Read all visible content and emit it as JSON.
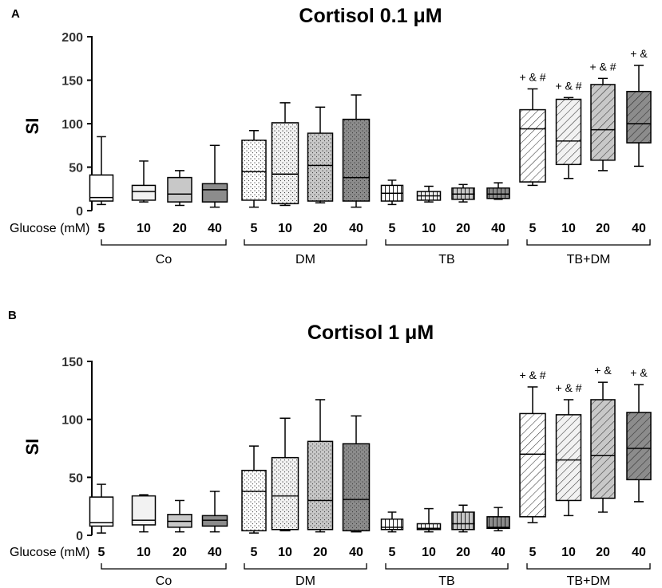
{
  "chart_data": [
    {
      "panel": "A",
      "type": "boxplot",
      "title": "Cortisol 0.1 μM",
      "xlabel": "Glucose (mM)",
      "ylabel": "SI",
      "ylim": [
        0,
        200
      ],
      "yticks": [
        0,
        50,
        100,
        150,
        200
      ],
      "groups": [
        {
          "name": "Co",
          "categories": [
            "5",
            "10",
            "20",
            "40"
          ],
          "boxes": [
            {
              "glucose": "5",
              "min": 7,
              "q1": 11,
              "median": 15,
              "q3": 41,
              "max": 85,
              "fill": "#ffffff",
              "pattern": "none"
            },
            {
              "glucose": "10",
              "min": 10,
              "q1": 12,
              "median": 22,
              "q3": 29,
              "max": 57,
              "fill": "#f2f2f2",
              "pattern": "none"
            },
            {
              "glucose": "20",
              "min": 6,
              "q1": 10,
              "median": 19,
              "q3": 38,
              "max": 46,
              "fill": "#c8c8c8",
              "pattern": "none"
            },
            {
              "glucose": "40",
              "min": 4,
              "q1": 10,
              "median": 24,
              "q3": 31,
              "max": 75,
              "fill": "#8c8c8c",
              "pattern": "none"
            }
          ]
        },
        {
          "name": "DM",
          "categories": [
            "5",
            "10",
            "20",
            "40"
          ],
          "boxes": [
            {
              "glucose": "5",
              "min": 4,
              "q1": 12,
              "median": 45,
              "q3": 81,
              "max": 92,
              "fill": "#ffffff",
              "pattern": "dots"
            },
            {
              "glucose": "10",
              "min": 6,
              "q1": 8,
              "median": 42,
              "q3": 101,
              "max": 124,
              "fill": "#f2f2f2",
              "pattern": "dots"
            },
            {
              "glucose": "20",
              "min": 9,
              "q1": 11,
              "median": 52,
              "q3": 89,
              "max": 119,
              "fill": "#c8c8c8",
              "pattern": "dots"
            },
            {
              "glucose": "40",
              "min": 4,
              "q1": 11,
              "median": 38,
              "q3": 105,
              "max": 133,
              "fill": "#8c8c8c",
              "pattern": "dots"
            }
          ]
        },
        {
          "name": "TB",
          "categories": [
            "5",
            "10",
            "20",
            "40"
          ],
          "boxes": [
            {
              "glucose": "5",
              "min": 7,
              "q1": 11,
              "median": 20,
              "q3": 29,
              "max": 35,
              "fill": "#ffffff",
              "pattern": "vlines"
            },
            {
              "glucose": "10",
              "min": 10,
              "q1": 12,
              "median": 17,
              "q3": 22,
              "max": 28,
              "fill": "#f2f2f2",
              "pattern": "vlines"
            },
            {
              "glucose": "20",
              "min": 10,
              "q1": 13,
              "median": 19,
              "q3": 26,
              "max": 30,
              "fill": "#c8c8c8",
              "pattern": "vlines"
            },
            {
              "glucose": "40",
              "min": 13,
              "q1": 14,
              "median": 19,
              "q3": 26,
              "max": 32,
              "fill": "#8c8c8c",
              "pattern": "vlines"
            }
          ]
        },
        {
          "name": "TB+DM",
          "categories": [
            "5",
            "10",
            "20",
            "40"
          ],
          "boxes": [
            {
              "glucose": "5",
              "min": 29,
              "q1": 33,
              "median": 94,
              "q3": 116,
              "max": 140,
              "fill": "#ffffff",
              "pattern": "diag",
              "sig": "+ & #"
            },
            {
              "glucose": "10",
              "min": 37,
              "q1": 53,
              "median": 80,
              "q3": 128,
              "max": 130,
              "fill": "#f2f2f2",
              "pattern": "diag",
              "sig": "+ & #"
            },
            {
              "glucose": "20",
              "min": 46,
              "q1": 58,
              "median": 93,
              "q3": 145,
              "max": 152,
              "fill": "#c8c8c8",
              "pattern": "diag",
              "sig": "+ & #"
            },
            {
              "glucose": "40",
              "min": 51,
              "q1": 78,
              "median": 100,
              "q3": 137,
              "max": 167,
              "fill": "#8c8c8c",
              "pattern": "diag",
              "sig": "+ &"
            }
          ]
        }
      ]
    },
    {
      "panel": "B",
      "type": "boxplot",
      "title": "Cortisol 1 μM",
      "xlabel": "Glucose (mM)",
      "ylabel": "SI",
      "ylim": [
        0,
        150
      ],
      "yticks": [
        0,
        50,
        100,
        150
      ],
      "groups": [
        {
          "name": "Co",
          "categories": [
            "5",
            "10",
            "20",
            "40"
          ],
          "boxes": [
            {
              "glucose": "5",
              "min": 2,
              "q1": 8,
              "median": 11,
              "q3": 33,
              "max": 44,
              "fill": "#ffffff",
              "pattern": "none"
            },
            {
              "glucose": "10",
              "min": 3,
              "q1": 9,
              "median": 13,
              "q3": 34,
              "max": 35,
              "fill": "#f2f2f2",
              "pattern": "none"
            },
            {
              "glucose": "20",
              "min": 3,
              "q1": 7,
              "median": 12,
              "q3": 18,
              "max": 30,
              "fill": "#c8c8c8",
              "pattern": "none"
            },
            {
              "glucose": "40",
              "min": 3,
              "q1": 8,
              "median": 13,
              "q3": 17,
              "max": 38,
              "fill": "#8c8c8c",
              "pattern": "none"
            }
          ]
        },
        {
          "name": "DM",
          "categories": [
            "5",
            "10",
            "20",
            "40"
          ],
          "boxes": [
            {
              "glucose": "5",
              "min": 2,
              "q1": 4,
              "median": 38,
              "q3": 56,
              "max": 77,
              "fill": "#ffffff",
              "pattern": "dots"
            },
            {
              "glucose": "10",
              "min": 4,
              "q1": 5,
              "median": 34,
              "q3": 67,
              "max": 101,
              "fill": "#f2f2f2",
              "pattern": "dots"
            },
            {
              "glucose": "20",
              "min": 3,
              "q1": 5,
              "median": 30,
              "q3": 81,
              "max": 117,
              "fill": "#c8c8c8",
              "pattern": "dots"
            },
            {
              "glucose": "40",
              "min": 3,
              "q1": 4,
              "median": 31,
              "q3": 79,
              "max": 103,
              "fill": "#8c8c8c",
              "pattern": "dots"
            }
          ]
        },
        {
          "name": "TB",
          "categories": [
            "5",
            "10",
            "20",
            "40"
          ],
          "boxes": [
            {
              "glucose": "5",
              "min": 3,
              "q1": 5,
              "median": 7,
              "q3": 14,
              "max": 20,
              "fill": "#ffffff",
              "pattern": "vlines"
            },
            {
              "glucose": "10",
              "min": 3,
              "q1": 5,
              "median": 6,
              "q3": 10,
              "max": 23,
              "fill": "#f2f2f2",
              "pattern": "vlines"
            },
            {
              "glucose": "20",
              "min": 3,
              "q1": 5,
              "median": 10,
              "q3": 20,
              "max": 26,
              "fill": "#c8c8c8",
              "pattern": "vlines"
            },
            {
              "glucose": "40",
              "min": 4,
              "q1": 6,
              "median": 7,
              "q3": 16,
              "max": 24,
              "fill": "#8c8c8c",
              "pattern": "vlines"
            }
          ]
        },
        {
          "name": "TB+DM",
          "categories": [
            "5",
            "10",
            "20",
            "40"
          ],
          "boxes": [
            {
              "glucose": "5",
              "min": 11,
              "q1": 16,
              "median": 70,
              "q3": 105,
              "max": 128,
              "fill": "#ffffff",
              "pattern": "diag",
              "sig": "+ & #"
            },
            {
              "glucose": "10",
              "min": 17,
              "q1": 30,
              "median": 65,
              "q3": 104,
              "max": 117,
              "fill": "#f2f2f2",
              "pattern": "diag",
              "sig": "+ & #"
            },
            {
              "glucose": "20",
              "min": 20,
              "q1": 32,
              "median": 69,
              "q3": 117,
              "max": 132,
              "fill": "#c8c8c8",
              "pattern": "diag",
              "sig": "+ &"
            },
            {
              "glucose": "40",
              "min": 29,
              "q1": 48,
              "median": 75,
              "q3": 106,
              "max": 130,
              "fill": "#8c8c8c",
              "pattern": "diag",
              "sig": "+ &"
            }
          ]
        }
      ]
    }
  ]
}
